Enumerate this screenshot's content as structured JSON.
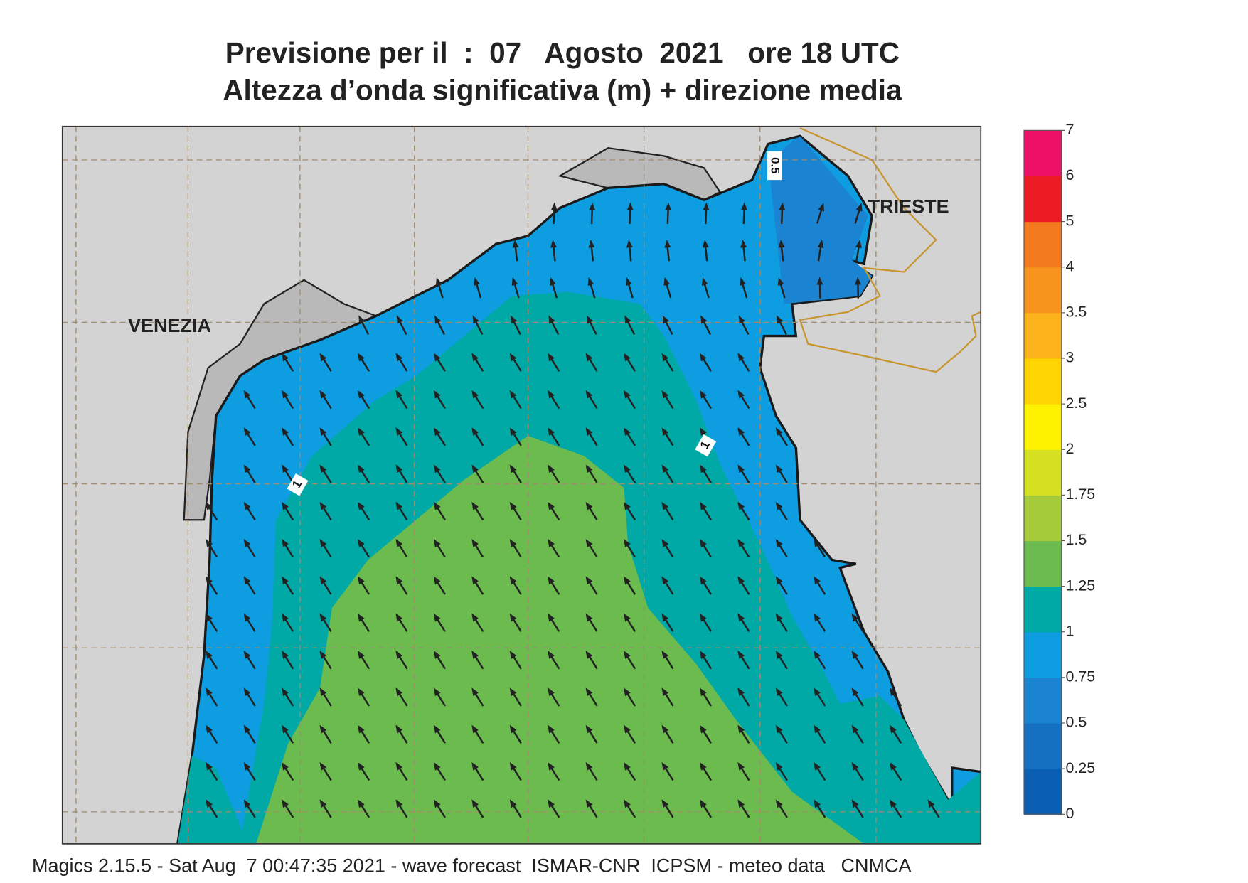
{
  "header": {
    "title": [
      "Previsione per il  :  07   Agosto  2021   ore 18 UTC",
      "Altezza d’onda significativa (m) + direzione media"
    ]
  },
  "map": {
    "places": [
      "VENEZIA",
      "TRIESTE"
    ],
    "contour_labels": [
      "0.5",
      "1",
      "1"
    ]
  },
  "colorbar": {
    "ticks": [
      0,
      0.25,
      0.5,
      0.75,
      1,
      1.25,
      1.5,
      1.75,
      2,
      2.5,
      3,
      3.5,
      4,
      5,
      6,
      7
    ],
    "colors": [
      "#0a5fb4",
      "#1670c2",
      "#1a84d2",
      "#0d9de0",
      "#00a9a6",
      "#6cbb4f",
      "#a6cb3a",
      "#d6e022",
      "#fff200",
      "#ffd400",
      "#fbb21b",
      "#f7941d",
      "#f47a20",
      "#ed1c24",
      "#ec1066"
    ]
  },
  "footer": "Magics 2.15.5 - Sat Aug  7 00:47:35 2021 - wave forecast  ISMAR-CNR  ICPSM - meteo data   CNMCA"
}
